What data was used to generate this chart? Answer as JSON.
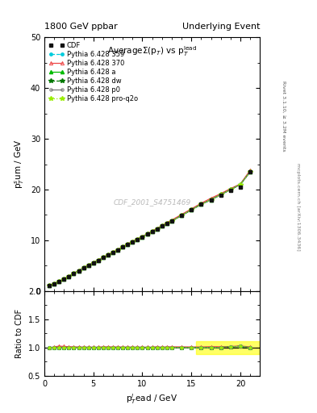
{
  "title_left": "1800 GeV ppbar",
  "title_right": "Underlying Event",
  "plot_title": "AverageΣ(p_{T}) vs p_{T}^{lead}",
  "xlabel": "p$_{T}^{l}$ead / GeV",
  "ylabel_main": "p$_{T}^{s}$um / GeV",
  "ylabel_ratio": "Ratio to CDF",
  "watermark": "CDF_2001_S4751469",
  "rivet_text": "Rivet 3.1.10, ≥ 3.2M events",
  "arxiv_text": "mcplots.cern.ch [arXiv:1306.3436]",
  "xlim": [
    0,
    22
  ],
  "ylim_main": [
    0,
    50
  ],
  "ylim_ratio": [
    0.5,
    2.0
  ],
  "x_data": [
    0.5,
    1.0,
    1.5,
    2.0,
    2.5,
    3.0,
    3.5,
    4.0,
    4.5,
    5.0,
    5.5,
    6.0,
    6.5,
    7.0,
    7.5,
    8.0,
    8.5,
    9.0,
    9.5,
    10.0,
    10.5,
    11.0,
    11.5,
    12.0,
    12.5,
    13.0,
    14.0,
    15.0,
    16.0,
    17.0,
    18.0,
    19.0,
    20.0,
    21.0
  ],
  "y_cdf": [
    1.1,
    1.5,
    1.9,
    2.4,
    2.9,
    3.5,
    4.0,
    4.6,
    5.1,
    5.6,
    6.1,
    6.6,
    7.1,
    7.6,
    8.1,
    8.7,
    9.2,
    9.7,
    10.2,
    10.7,
    11.2,
    11.7,
    12.2,
    12.8,
    13.3,
    13.8,
    14.9,
    16.0,
    17.1,
    18.0,
    18.9,
    19.8,
    20.5,
    23.5
  ],
  "y_359": [
    1.1,
    1.5,
    1.9,
    2.4,
    2.9,
    3.5,
    4.0,
    4.6,
    5.1,
    5.6,
    6.1,
    6.6,
    7.1,
    7.6,
    8.1,
    8.7,
    9.2,
    9.7,
    10.2,
    10.7,
    11.2,
    11.7,
    12.2,
    12.8,
    13.3,
    13.8,
    14.9,
    16.0,
    17.1,
    18.0,
    19.0,
    20.0,
    21.0,
    23.5
  ],
  "y_370": [
    1.1,
    1.52,
    1.95,
    2.45,
    2.95,
    3.55,
    4.05,
    4.65,
    5.15,
    5.65,
    6.15,
    6.7,
    7.2,
    7.7,
    8.2,
    8.8,
    9.3,
    9.8,
    10.3,
    10.8,
    11.3,
    11.8,
    12.4,
    12.9,
    13.5,
    14.0,
    15.1,
    16.2,
    17.3,
    18.3,
    19.2,
    20.2,
    21.1,
    23.8
  ],
  "y_a": [
    1.1,
    1.5,
    1.9,
    2.4,
    2.9,
    3.5,
    4.0,
    4.6,
    5.1,
    5.6,
    6.1,
    6.6,
    7.1,
    7.6,
    8.1,
    8.7,
    9.2,
    9.7,
    10.2,
    10.7,
    11.2,
    11.7,
    12.2,
    12.8,
    13.3,
    13.8,
    14.9,
    16.0,
    17.1,
    18.0,
    19.0,
    20.0,
    21.0,
    23.5
  ],
  "y_dw": [
    1.1,
    1.5,
    1.9,
    2.4,
    2.9,
    3.5,
    4.0,
    4.6,
    5.1,
    5.6,
    6.1,
    6.6,
    7.1,
    7.6,
    8.1,
    8.7,
    9.2,
    9.7,
    10.2,
    10.7,
    11.2,
    11.7,
    12.2,
    12.8,
    13.3,
    13.8,
    14.9,
    16.0,
    17.1,
    18.0,
    19.0,
    20.0,
    21.0,
    23.5
  ],
  "y_p0": [
    1.1,
    1.5,
    1.9,
    2.4,
    2.9,
    3.5,
    4.0,
    4.6,
    5.1,
    5.6,
    6.1,
    6.6,
    7.1,
    7.6,
    8.1,
    8.7,
    9.2,
    9.7,
    10.2,
    10.7,
    11.2,
    11.7,
    12.2,
    12.8,
    13.3,
    13.8,
    14.9,
    16.0,
    17.1,
    18.0,
    19.0,
    20.0,
    21.0,
    23.5
  ],
  "y_pro": [
    1.1,
    1.5,
    1.9,
    2.4,
    2.9,
    3.5,
    4.0,
    4.6,
    5.1,
    5.6,
    6.1,
    6.6,
    7.1,
    7.6,
    8.1,
    8.7,
    9.2,
    9.7,
    10.2,
    10.7,
    11.2,
    11.7,
    12.2,
    12.8,
    13.3,
    13.8,
    14.9,
    16.0,
    17.1,
    18.0,
    19.0,
    20.0,
    21.0,
    23.5
  ],
  "color_359": "#00ccdd",
  "color_370": "#ee4444",
  "color_a": "#00bb00",
  "color_dw": "#007700",
  "color_p0": "#777777",
  "color_pro": "#99ee00",
  "color_cdf": "#111111",
  "yticks_main": [
    0,
    10,
    20,
    30,
    40,
    50
  ],
  "yticks_ratio": [
    0.5,
    1.0,
    1.5,
    2.0
  ],
  "xticks": [
    0,
    5,
    10,
    15,
    20
  ]
}
